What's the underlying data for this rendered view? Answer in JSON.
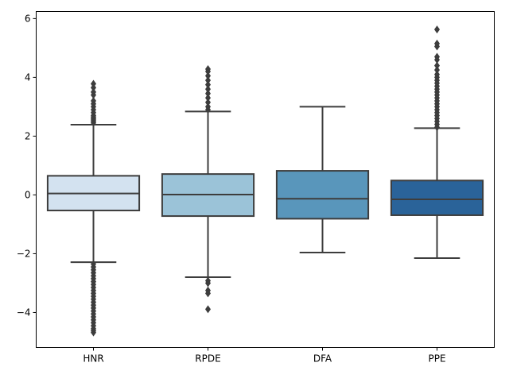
{
  "chart_data": {
    "type": "box",
    "title": "",
    "xlabel": "",
    "ylabel": "",
    "ylim": [
      -5.19,
      6.24
    ],
    "yticks": [
      -4,
      -2,
      0,
      2,
      4,
      6
    ],
    "grid": false,
    "categories": [
      "HNR",
      "RPDE",
      "DFA",
      "PPE"
    ],
    "colors": [
      "#d3e2f0",
      "#9bc3d8",
      "#5996bb",
      "#2a6399"
    ],
    "line_color": "#3d3d3d",
    "boxes": [
      {
        "name": "HNR",
        "whislo": -2.29,
        "q1": -0.53,
        "med": 0.05,
        "q3": 0.65,
        "whishi": 2.39,
        "fliers": [
          2.45,
          2.5,
          2.55,
          2.6,
          2.65,
          2.7,
          2.8,
          2.9,
          3.0,
          3.1,
          3.2,
          3.4,
          3.5,
          3.65,
          3.78,
          -2.35,
          -2.45,
          -2.55,
          -2.65,
          -2.75,
          -2.85,
          -2.95,
          -3.05,
          -3.15,
          -3.25,
          -3.35,
          -3.45,
          -3.55,
          -3.65,
          -3.75,
          -3.85,
          -3.95,
          -4.05,
          -4.15,
          -4.25,
          -4.35,
          -4.45,
          -4.55,
          -4.62,
          -4.68
        ]
      },
      {
        "name": "RPDE",
        "whislo": -2.8,
        "q1": -0.72,
        "med": 0.01,
        "q3": 0.71,
        "whishi": 2.84,
        "fliers": [
          2.9,
          3.0,
          3.15,
          3.3,
          3.45,
          3.6,
          3.75,
          3.9,
          4.05,
          4.2,
          4.28,
          -2.92,
          -3.0,
          -3.25,
          -3.35,
          -3.89
        ]
      },
      {
        "name": "DFA",
        "whislo": -1.96,
        "q1": -0.81,
        "med": -0.13,
        "q3": 0.82,
        "whishi": 3.0,
        "fliers": []
      },
      {
        "name": "PPE",
        "whislo": -2.15,
        "q1": -0.69,
        "med": -0.15,
        "q3": 0.49,
        "whishi": 2.27,
        "fliers": [
          2.3,
          2.4,
          2.5,
          2.6,
          2.7,
          2.8,
          2.9,
          3.0,
          3.1,
          3.2,
          3.3,
          3.4,
          3.5,
          3.6,
          3.7,
          3.8,
          3.9,
          4.0,
          4.1,
          4.25,
          4.4,
          4.6,
          4.7,
          5.05,
          5.15,
          5.63
        ]
      }
    ]
  }
}
